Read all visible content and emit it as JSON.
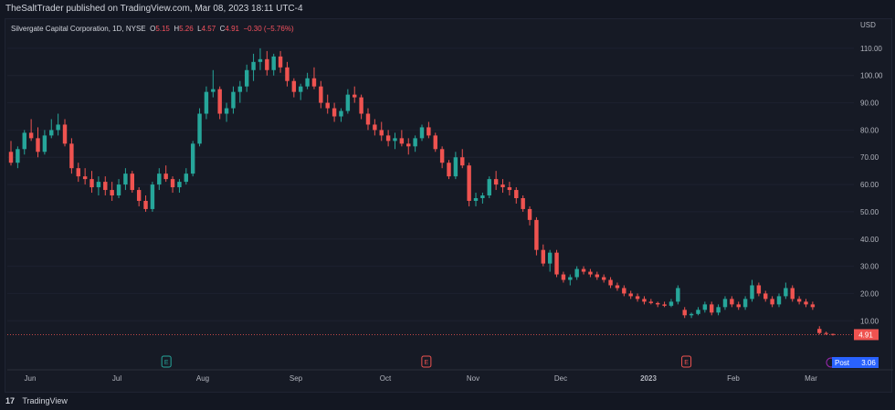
{
  "header": {
    "publish_text": "TheSaltTrader published on TradingView.com, Mar 08, 2023 18:11 UTC-4"
  },
  "legend": {
    "symbol": "Silvergate Capital Corporation, 1D, NYSE",
    "o_label": "O",
    "o_value": "5.15",
    "h_label": "H",
    "h_value": "5.26",
    "l_label": "L",
    "l_value": "4.57",
    "c_label": "C",
    "c_value": "4.91",
    "change": "−0.30 (−5.76%)"
  },
  "footer": {
    "brand": "TradingView"
  },
  "colors": {
    "up": "#26a69a",
    "down": "#ef5350",
    "grid": "#1e2230",
    "axis_text": "#b2b5be",
    "last_label": "#ef5350",
    "post_label": "#2962ff"
  },
  "chart_data": {
    "type": "candlestick",
    "currency": "USD",
    "y_ticks": [
      "110.00",
      "100.00",
      "90.00",
      "80.00",
      "70.00",
      "60.00",
      "50.00",
      "40.00",
      "30.00",
      "20.00",
      "10.00"
    ],
    "y_values": [
      110,
      100,
      90,
      80,
      70,
      60,
      50,
      40,
      30,
      20,
      10
    ],
    "ylim": [
      -6,
      116
    ],
    "x_ticks": [
      "Jun",
      "Jul",
      "Aug",
      "Sep",
      "Oct",
      "Nov",
      "Dec",
      "2023",
      "Jan",
      "Feb",
      "Mar"
    ],
    "x_tick_bold": [
      false,
      false,
      false,
      false,
      false,
      false,
      false,
      true,
      false,
      false,
      false
    ],
    "date_range": [
      "2022-06-01",
      "2023-03-08"
    ],
    "event_markers": [
      {
        "label": "E",
        "color": "#26a69a",
        "date": "2022-07-19"
      },
      {
        "label": "E",
        "color": "#ef5350",
        "date": "2022-10-18"
      },
      {
        "label": "E",
        "color": "#ef5350",
        "date": "2023-01-17"
      }
    ],
    "last_price": {
      "label": "4.91",
      "value": 4.91
    },
    "post_label": {
      "name": "Post",
      "value_text": "3.06",
      "value": 3.06
    },
    "candles": [
      {
        "o": 72,
        "h": 76,
        "l": 67,
        "c": 68
      },
      {
        "o": 68,
        "h": 74,
        "l": 66,
        "c": 73
      },
      {
        "o": 73,
        "h": 80,
        "l": 71,
        "c": 79
      },
      {
        "o": 79,
        "h": 84,
        "l": 76,
        "c": 77
      },
      {
        "o": 77,
        "h": 81,
        "l": 70,
        "c": 72
      },
      {
        "o": 72,
        "h": 80,
        "l": 71,
        "c": 78
      },
      {
        "o": 78,
        "h": 84,
        "l": 77,
        "c": 80
      },
      {
        "o": 80,
        "h": 86,
        "l": 78,
        "c": 82
      },
      {
        "o": 82,
        "h": 84,
        "l": 74,
        "c": 75
      },
      {
        "o": 75,
        "h": 77,
        "l": 64,
        "c": 66
      },
      {
        "o": 66,
        "h": 68,
        "l": 61,
        "c": 63
      },
      {
        "o": 63,
        "h": 66,
        "l": 60,
        "c": 62
      },
      {
        "o": 62,
        "h": 65,
        "l": 57,
        "c": 59
      },
      {
        "o": 59,
        "h": 63,
        "l": 56,
        "c": 61
      },
      {
        "o": 61,
        "h": 63,
        "l": 56,
        "c": 58
      },
      {
        "o": 58,
        "h": 61,
        "l": 54,
        "c": 56
      },
      {
        "o": 56,
        "h": 62,
        "l": 55,
        "c": 60
      },
      {
        "o": 60,
        "h": 66,
        "l": 58,
        "c": 64
      },
      {
        "o": 64,
        "h": 65,
        "l": 57,
        "c": 58
      },
      {
        "o": 58,
        "h": 59,
        "l": 52,
        "c": 54
      },
      {
        "o": 54,
        "h": 56,
        "l": 50,
        "c": 51
      },
      {
        "o": 51,
        "h": 61,
        "l": 50,
        "c": 60
      },
      {
        "o": 60,
        "h": 66,
        "l": 58,
        "c": 64
      },
      {
        "o": 64,
        "h": 67,
        "l": 61,
        "c": 62
      },
      {
        "o": 62,
        "h": 63,
        "l": 57,
        "c": 59
      },
      {
        "o": 59,
        "h": 62,
        "l": 57,
        "c": 61
      },
      {
        "o": 61,
        "h": 66,
        "l": 60,
        "c": 64
      },
      {
        "o": 64,
        "h": 76,
        "l": 63,
        "c": 75
      },
      {
        "o": 75,
        "h": 88,
        "l": 74,
        "c": 86
      },
      {
        "o": 86,
        "h": 96,
        "l": 84,
        "c": 94
      },
      {
        "o": 94,
        "h": 102,
        "l": 92,
        "c": 95
      },
      {
        "o": 95,
        "h": 96,
        "l": 84,
        "c": 86
      },
      {
        "o": 86,
        "h": 90,
        "l": 83,
        "c": 88
      },
      {
        "o": 88,
        "h": 96,
        "l": 86,
        "c": 94
      },
      {
        "o": 94,
        "h": 98,
        "l": 90,
        "c": 96
      },
      {
        "o": 96,
        "h": 104,
        "l": 94,
        "c": 102
      },
      {
        "o": 102,
        "h": 108,
        "l": 98,
        "c": 105
      },
      {
        "o": 105,
        "h": 110,
        "l": 102,
        "c": 106
      },
      {
        "o": 106,
        "h": 109,
        "l": 100,
        "c": 102
      },
      {
        "o": 102,
        "h": 108,
        "l": 100,
        "c": 107
      },
      {
        "o": 107,
        "h": 109,
        "l": 101,
        "c": 103
      },
      {
        "o": 103,
        "h": 105,
        "l": 96,
        "c": 98
      },
      {
        "o": 98,
        "h": 99,
        "l": 92,
        "c": 94
      },
      {
        "o": 94,
        "h": 97,
        "l": 91,
        "c": 96
      },
      {
        "o": 96,
        "h": 101,
        "l": 95,
        "c": 99
      },
      {
        "o": 99,
        "h": 103,
        "l": 95,
        "c": 96
      },
      {
        "o": 96,
        "h": 98,
        "l": 88,
        "c": 90
      },
      {
        "o": 90,
        "h": 93,
        "l": 86,
        "c": 88
      },
      {
        "o": 88,
        "h": 90,
        "l": 83,
        "c": 85
      },
      {
        "o": 85,
        "h": 88,
        "l": 83,
        "c": 87
      },
      {
        "o": 87,
        "h": 95,
        "l": 86,
        "c": 93
      },
      {
        "o": 93,
        "h": 96,
        "l": 90,
        "c": 92
      },
      {
        "o": 92,
        "h": 93,
        "l": 84,
        "c": 86
      },
      {
        "o": 86,
        "h": 88,
        "l": 80,
        "c": 82
      },
      {
        "o": 82,
        "h": 84,
        "l": 78,
        "c": 80
      },
      {
        "o": 80,
        "h": 83,
        "l": 76,
        "c": 78
      },
      {
        "o": 78,
        "h": 80,
        "l": 74,
        "c": 76
      },
      {
        "o": 76,
        "h": 79,
        "l": 73,
        "c": 77
      },
      {
        "o": 77,
        "h": 80,
        "l": 74,
        "c": 75
      },
      {
        "o": 75,
        "h": 77,
        "l": 71,
        "c": 74
      },
      {
        "o": 74,
        "h": 78,
        "l": 72,
        "c": 77
      },
      {
        "o": 77,
        "h": 82,
        "l": 76,
        "c": 81
      },
      {
        "o": 81,
        "h": 83,
        "l": 77,
        "c": 78
      },
      {
        "o": 78,
        "h": 79,
        "l": 72,
        "c": 73
      },
      {
        "o": 73,
        "h": 74,
        "l": 66,
        "c": 68
      },
      {
        "o": 68,
        "h": 69,
        "l": 62,
        "c": 63
      },
      {
        "o": 63,
        "h": 72,
        "l": 62,
        "c": 70
      },
      {
        "o": 70,
        "h": 73,
        "l": 66,
        "c": 67
      },
      {
        "o": 67,
        "h": 68,
        "l": 52,
        "c": 54
      },
      {
        "o": 54,
        "h": 57,
        "l": 52,
        "c": 55
      },
      {
        "o": 55,
        "h": 57,
        "l": 53,
        "c": 56
      },
      {
        "o": 56,
        "h": 63,
        "l": 55,
        "c": 62
      },
      {
        "o": 62,
        "h": 65,
        "l": 58,
        "c": 60
      },
      {
        "o": 60,
        "h": 62,
        "l": 57,
        "c": 59
      },
      {
        "o": 59,
        "h": 61,
        "l": 56,
        "c": 58
      },
      {
        "o": 58,
        "h": 59,
        "l": 53,
        "c": 55
      },
      {
        "o": 55,
        "h": 56,
        "l": 50,
        "c": 51
      },
      {
        "o": 51,
        "h": 52,
        "l": 45,
        "c": 47
      },
      {
        "o": 47,
        "h": 48,
        "l": 34,
        "c": 36
      },
      {
        "o": 36,
        "h": 38,
        "l": 30,
        "c": 31
      },
      {
        "o": 31,
        "h": 36,
        "l": 28,
        "c": 35
      },
      {
        "o": 35,
        "h": 36,
        "l": 26,
        "c": 27
      },
      {
        "o": 27,
        "h": 28,
        "l": 24,
        "c": 25
      },
      {
        "o": 25,
        "h": 27,
        "l": 23,
        "c": 26
      },
      {
        "o": 26,
        "h": 30,
        "l": 25,
        "c": 29
      },
      {
        "o": 29,
        "h": 30,
        "l": 27,
        "c": 28
      },
      {
        "o": 28,
        "h": 29,
        "l": 26,
        "c": 27
      },
      {
        "o": 27,
        "h": 28,
        "l": 25,
        "c": 26
      },
      {
        "o": 26,
        "h": 27,
        "l": 24,
        "c": 25
      },
      {
        "o": 25,
        "h": 26,
        "l": 22,
        "c": 23
      },
      {
        "o": 23,
        "h": 24,
        "l": 21,
        "c": 22
      },
      {
        "o": 22,
        "h": 23,
        "l": 19,
        "c": 20
      },
      {
        "o": 20,
        "h": 21,
        "l": 18,
        "c": 19
      },
      {
        "o": 19,
        "h": 20,
        "l": 17,
        "c": 18
      },
      {
        "o": 18,
        "h": 19,
        "l": 16,
        "c": 17
      },
      {
        "o": 17,
        "h": 18,
        "l": 16,
        "c": 16.5
      },
      {
        "o": 16.5,
        "h": 17,
        "l": 15,
        "c": 16
      },
      {
        "o": 16,
        "h": 17,
        "l": 15,
        "c": 15.5
      },
      {
        "o": 15.5,
        "h": 18,
        "l": 15,
        "c": 17
      },
      {
        "o": 17,
        "h": 23,
        "l": 16,
        "c": 22
      },
      {
        "o": 14,
        "h": 15,
        "l": 11,
        "c": 12
      },
      {
        "o": 12,
        "h": 13,
        "l": 11,
        "c": 12.5
      },
      {
        "o": 12.5,
        "h": 15,
        "l": 12,
        "c": 14
      },
      {
        "o": 14,
        "h": 17,
        "l": 13,
        "c": 16
      },
      {
        "o": 16,
        "h": 17,
        "l": 12,
        "c": 13
      },
      {
        "o": 13,
        "h": 16,
        "l": 12,
        "c": 15
      },
      {
        "o": 15,
        "h": 19,
        "l": 14,
        "c": 18
      },
      {
        "o": 18,
        "h": 19,
        "l": 15,
        "c": 16
      },
      {
        "o": 16,
        "h": 17,
        "l": 14,
        "c": 15
      },
      {
        "o": 15,
        "h": 19,
        "l": 14,
        "c": 18
      },
      {
        "o": 18,
        "h": 25,
        "l": 17,
        "c": 23
      },
      {
        "o": 23,
        "h": 24,
        "l": 19,
        "c": 20
      },
      {
        "o": 20,
        "h": 21,
        "l": 17,
        "c": 18
      },
      {
        "o": 18,
        "h": 19,
        "l": 15,
        "c": 16
      },
      {
        "o": 16,
        "h": 20,
        "l": 15,
        "c": 19
      },
      {
        "o": 19,
        "h": 24,
        "l": 18,
        "c": 22
      },
      {
        "o": 22,
        "h": 23,
        "l": 17,
        "c": 18
      },
      {
        "o": 18,
        "h": 19,
        "l": 16,
        "c": 17
      },
      {
        "o": 17,
        "h": 18,
        "l": 15,
        "c": 16
      },
      {
        "o": 16,
        "h": 17,
        "l": 14,
        "c": 15
      },
      {
        "o": 7,
        "h": 8,
        "l": 5,
        "c": 5.5
      },
      {
        "o": 5.5,
        "h": 6,
        "l": 4.8,
        "c": 5.2
      },
      {
        "o": 5.15,
        "h": 5.26,
        "l": 4.57,
        "c": 4.91
      }
    ]
  }
}
